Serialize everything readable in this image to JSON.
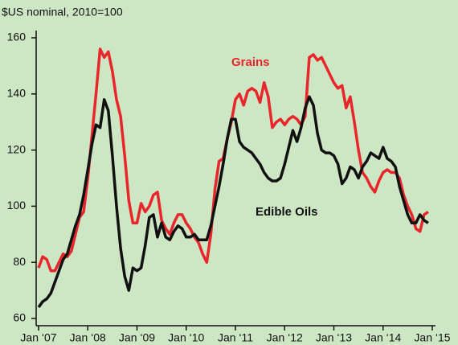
{
  "chart_data": {
    "type": "line",
    "subtitle": "$US nominal, 2010=100",
    "annotations": [
      "Grains",
      "Edible Oils"
    ],
    "x": [
      0,
      1,
      2,
      3,
      4,
      5,
      6,
      7,
      8,
      9,
      10,
      11,
      12,
      13,
      14,
      15,
      16,
      17,
      18,
      19,
      20,
      21,
      22,
      23,
      24,
      25,
      26,
      27,
      28,
      29,
      30,
      31,
      32,
      33,
      34,
      35,
      36,
      37,
      38,
      39,
      40,
      41,
      42,
      43,
      44,
      45,
      46,
      47,
      48,
      49,
      50,
      51,
      52,
      53,
      54,
      55,
      56,
      57,
      58,
      59,
      60,
      61,
      62,
      63,
      64,
      65,
      66,
      67,
      68,
      69,
      70,
      71,
      72,
      73,
      74,
      75,
      76,
      77,
      78,
      79,
      80,
      81,
      82,
      83,
      84,
      85,
      86,
      87,
      88,
      89,
      90,
      91,
      92,
      93,
      94,
      95
    ],
    "xlim": [
      0,
      96
    ],
    "xticks": [
      {
        "value": 0,
        "label": "Jan ‘07"
      },
      {
        "value": 12,
        "label": "Jan ‘08"
      },
      {
        "value": 24,
        "label": "Jan ‘09"
      },
      {
        "value": 36,
        "label": "Jan ‘10"
      },
      {
        "value": 48,
        "label": "Jan ‘11"
      },
      {
        "value": 60,
        "label": "Jan ‘12"
      },
      {
        "value": 72,
        "label": "Jan ‘13"
      },
      {
        "value": 84,
        "label": "Jan ‘14"
      },
      {
        "value": 96,
        "label": "Jan ‘15"
      }
    ],
    "ylim": [
      60,
      160
    ],
    "yticks": [
      60,
      80,
      100,
      120,
      140,
      160
    ],
    "series": [
      {
        "name": "Grains",
        "color": "#e8262b",
        "values": [
          78,
          82,
          81,
          77,
          77,
          80,
          83,
          82,
          84,
          90,
          96,
          98,
          110,
          125,
          140,
          156,
          153,
          155,
          148,
          138,
          132,
          118,
          102,
          94,
          94,
          101,
          98,
          100,
          104,
          105,
          95,
          92,
          90,
          94,
          97,
          97,
          94,
          92,
          89,
          87,
          83,
          80,
          90,
          106,
          116,
          117,
          124,
          130,
          138,
          140,
          136,
          141,
          142,
          141,
          137,
          144,
          139,
          128,
          130,
          131,
          129,
          131,
          132,
          131,
          129,
          132,
          153,
          154,
          152,
          153,
          150,
          147,
          144,
          142,
          143,
          135,
          139,
          130,
          120,
          112,
          110,
          107,
          105,
          109,
          112,
          113,
          112,
          112,
          110,
          104,
          100,
          97,
          92,
          91,
          97,
          98
        ]
      },
      {
        "name": "Edible Oils",
        "color": "#111111",
        "values": [
          64,
          66,
          67,
          69,
          73,
          77,
          81,
          83,
          88,
          93,
          97,
          104,
          113,
          122,
          129,
          128,
          138,
          134,
          118,
          100,
          85,
          75,
          70,
          78,
          77,
          78,
          86,
          96,
          97,
          89,
          94,
          89,
          88,
          91,
          93,
          92,
          89,
          89,
          90,
          88,
          88,
          88,
          93,
          100,
          107,
          115,
          124,
          131,
          131,
          123,
          121,
          120,
          119,
          117,
          115,
          112,
          110,
          109,
          109,
          110,
          115,
          121,
          127,
          123,
          128,
          135,
          139,
          136,
          126,
          120,
          119,
          119,
          118,
          115,
          108,
          110,
          114,
          113,
          110,
          114,
          116,
          119,
          118,
          117,
          121,
          117,
          116,
          114,
          107,
          102,
          97,
          94,
          94,
          97,
          95,
          94
        ]
      }
    ]
  }
}
